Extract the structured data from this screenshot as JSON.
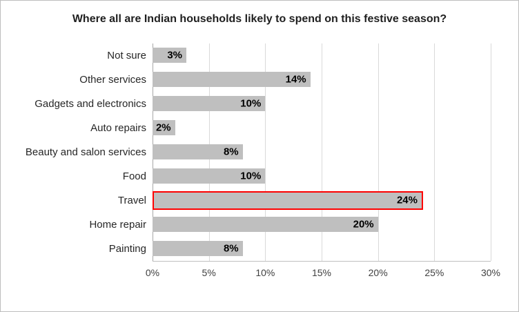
{
  "chart_data": {
    "type": "bar",
    "orientation": "horizontal",
    "title": "Where all are Indian households likely to spend on this festive season?",
    "categories": [
      "Not sure",
      "Other services",
      "Gadgets and electronics",
      "Auto repairs",
      "Beauty and salon services",
      "Food",
      "Travel",
      "Home repair",
      "Painting"
    ],
    "values": [
      3,
      14,
      10,
      2,
      8,
      10,
      24,
      20,
      8
    ],
    "labels": [
      "3%",
      "14%",
      "10%",
      "2%",
      "8%",
      "10%",
      "24%",
      "20%",
      "8%"
    ],
    "highlighted_category": "Travel",
    "x_ticks": [
      "0%",
      "5%",
      "10%",
      "15%",
      "20%",
      "25%",
      "30%"
    ],
    "xlim": [
      0,
      30
    ],
    "xlabel": "",
    "ylabel": "",
    "grid": true,
    "legend": "none",
    "bar_color": "#bfbfbf",
    "highlight_border_color": "#ff0000",
    "gridline_color": "#d9d9d9"
  }
}
